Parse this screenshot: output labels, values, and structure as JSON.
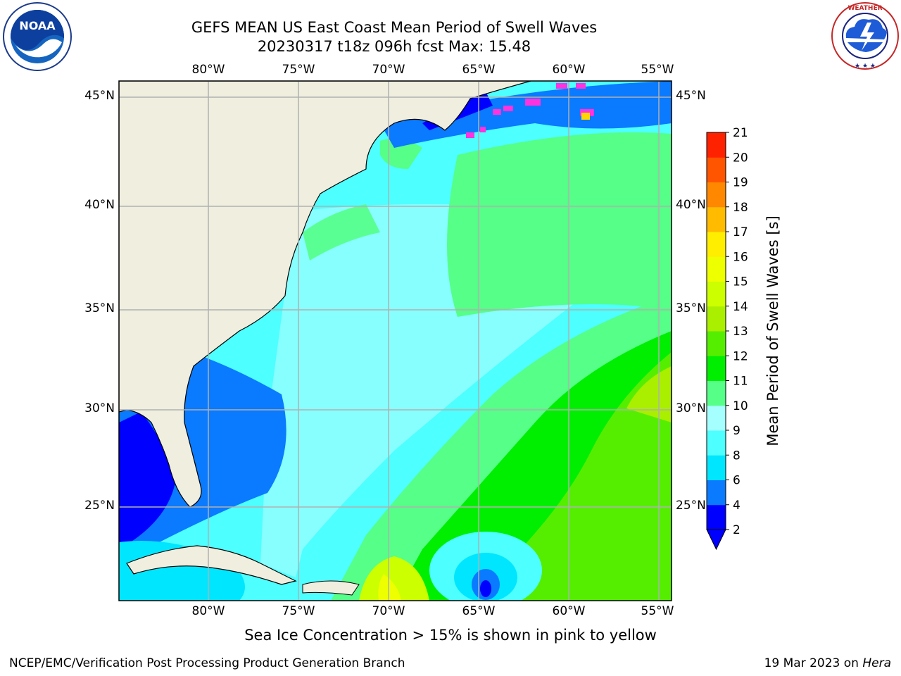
{
  "header": {
    "title_line1": "GEFS MEAN US East Coast Mean Period of Swell Waves",
    "title_line2": "20230317 t18z 096h fcst   Max: 15.48"
  },
  "logos": {
    "left": {
      "name": "noaa-logo",
      "text": "NOAA"
    },
    "right": {
      "name": "nws-logo",
      "text": "NATIONAL WEATHER SERVICE"
    }
  },
  "map": {
    "lon_labels": [
      "80°W",
      "75°W",
      "70°W",
      "65°W",
      "60°W",
      "55°W"
    ],
    "lat_labels": [
      "45°N",
      "40°N",
      "35°N",
      "30°N",
      "25°N"
    ],
    "colors": {
      "land": "#efeedf",
      "grid": "#b0b0b0"
    }
  },
  "colorbar": {
    "label": "Mean Period of Swell Waves [s]",
    "ticks": [
      "2",
      "4",
      "6",
      "8",
      "9",
      "10",
      "11",
      "12",
      "13",
      "14",
      "15",
      "16",
      "17",
      "18",
      "19",
      "20",
      "21"
    ],
    "colors": [
      "#0000ff",
      "#0a7aff",
      "#00e6ff",
      "#4dffff",
      "#a6ffff",
      "#55ff88",
      "#00ee00",
      "#55ee00",
      "#aaee00",
      "#ccff00",
      "#eeff00",
      "#ffee00",
      "#ffbb00",
      "#ff8800",
      "#ff5500",
      "#ff2200"
    ],
    "extend_color": "#0000ff"
  },
  "note": "Sea Ice Concentration > 15% is shown in pink to yellow",
  "footer": {
    "left": "NCEP/EMC/Verification Post Processing Product Generation Branch",
    "right_date": "19 Mar 2023 on ",
    "right_host": "Hera"
  }
}
